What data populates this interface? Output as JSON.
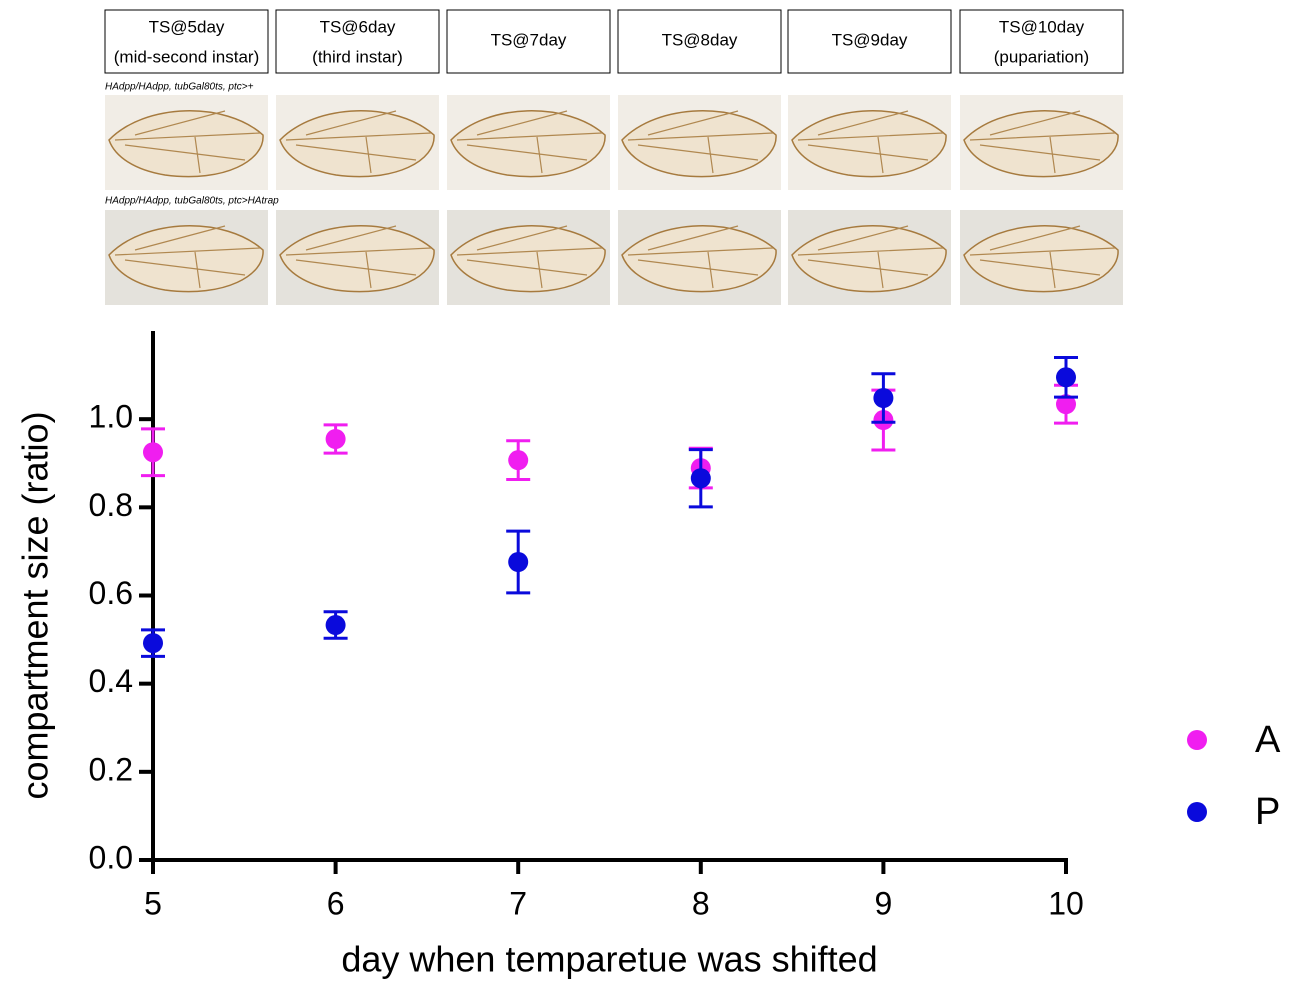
{
  "panels": [
    {
      "title": "TS@5day",
      "subtitle": "(mid-second instar)"
    },
    {
      "title": "TS@6day",
      "subtitle": "(third instar)"
    },
    {
      "title": "TS@7day"
    },
    {
      "title": "TS@8day"
    },
    {
      "title": "TS@9day"
    },
    {
      "title": "TS@10day",
      "subtitle": "(pupariation)"
    }
  ],
  "row_labels": [
    "HAdpp/HAdpp, tubGal80ts, ptc>+",
    "HAdpp/HAdpp, tubGal80ts, ptc>HAtrap"
  ],
  "chart_data": {
    "type": "scatter",
    "y_label": "compartment size (ratio)",
    "x_label": "day when temparetue was shifted",
    "x": [
      5,
      6,
      7,
      8,
      9,
      10
    ],
    "xlim": [
      5,
      10
    ],
    "xticks": [
      5,
      6,
      7,
      8,
      9,
      10
    ],
    "ylim": [
      0,
      1.2
    ],
    "yticks": [
      {
        "value": 0,
        "label": "0.0"
      },
      0.2,
      0.4,
      0.6,
      0.8,
      {
        "value": 1,
        "label": "1.0"
      }
    ],
    "series": [
      {
        "name": "A",
        "color": "#f01ef0",
        "values": [
          0.925,
          0.955,
          0.907,
          0.889,
          0.998,
          1.034
        ],
        "errors": [
          0.053,
          0.032,
          0.044,
          0.045,
          0.068,
          0.043
        ]
      },
      {
        "name": "P",
        "color": "#0a0adc",
        "values": [
          0.492,
          0.533,
          0.676,
          0.866,
          1.048,
          1.095
        ],
        "errors": [
          0.03,
          0.03,
          0.07,
          0.065,
          0.055,
          0.045
        ]
      }
    ],
    "legend": "right"
  }
}
